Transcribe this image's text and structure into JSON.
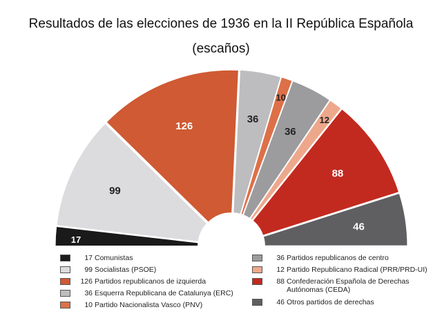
{
  "chart_data": {
    "type": "pie",
    "title": "Resultados de las elecciones de 1936 en la II República Española",
    "subtitle": "(escaños)",
    "unit": "escaños",
    "series": [
      {
        "name": "Comunistas",
        "value": 17,
        "color": "#1a1a1a",
        "label_color": "#ffffff"
      },
      {
        "name": "Socialistas (PSOE)",
        "value": 99,
        "color": "#dcdcdf",
        "label_color": "#222222"
      },
      {
        "name": "Partidos republicanos de izquierda",
        "value": 126,
        "color": "#cf5a33",
        "label_color": "#ffffff"
      },
      {
        "name": "Esquerra Republicana de Catalunya (ERC)",
        "value": 36,
        "color": "#bdbdc0",
        "label_color": "#222222"
      },
      {
        "name": "Partido Nacionalista Vasco (PNV)",
        "value": 10,
        "color": "#dd7048",
        "label_color": "#222222"
      },
      {
        "name": "Partidos republicanos de centro",
        "value": 36,
        "color": "#9c9c9f",
        "label_color": "#222222"
      },
      {
        "name": "Partido Republicano Radical (PRR/PRD-UI)",
        "value": 12,
        "color": "#eda88c",
        "label_color": "#222222"
      },
      {
        "name": "Confederación Española de Derechas Autónomas (CEDA)",
        "value": 88,
        "color": "#c22a1f",
        "label_color": "#ffffff"
      },
      {
        "name": "Otros partidos de derechas",
        "value": 46,
        "color": "#5f5f62",
        "label_color": "#ffffff"
      }
    ],
    "legend_left": [
      {
        "value": "17",
        "label": "Comunistas"
      },
      {
        "value": "99",
        "label": "Socialistas (PSOE)"
      },
      {
        "value": "126",
        "label": "Partidos republicanos de izquierda"
      },
      {
        "value": "36",
        "label": "Esquerra Republicana de Catalunya (ERC)"
      },
      {
        "value": "10",
        "label": "Partido Nacionalista Vasco (PNV)"
      }
    ],
    "legend_right": [
      {
        "value": "36",
        "label": "Partidos republicanos de centro"
      },
      {
        "value": "12",
        "label": "Partido Republicano Radical (PRR/PRD-UI)"
      },
      {
        "value": "88",
        "label": "Confederación Española de Derechas Autónomas (CEDA)"
      },
      {
        "value": "46",
        "label": "Otros partidos de derechas"
      }
    ]
  }
}
